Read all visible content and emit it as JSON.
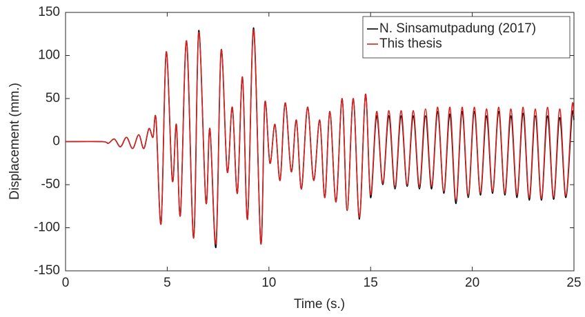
{
  "chart_data": {
    "type": "line",
    "xlabel": "Time (s.)",
    "ylabel": "Displacement (mm.)",
    "x": [
      0,
      1.8,
      2.1,
      2.4,
      2.7,
      3.0,
      3.3,
      3.6,
      3.85,
      4.1,
      4.3,
      4.45,
      4.7,
      4.95,
      5.25,
      5.45,
      5.65,
      5.95,
      6.3,
      6.55,
      6.9,
      7.1,
      7.4,
      7.65,
      7.95,
      8.2,
      8.45,
      8.7,
      8.95,
      9.25,
      9.6,
      9.8,
      10.05,
      10.3,
      10.55,
      10.8,
      11.1,
      11.35,
      11.6,
      11.9,
      12.2,
      12.5,
      12.75,
      13.0,
      13.3,
      13.6,
      13.85,
      14.15,
      14.45,
      14.75,
      15.0,
      15.3,
      15.6,
      15.9,
      16.2,
      16.5,
      16.8,
      17.1,
      17.4,
      17.7,
      18.0,
      18.3,
      18.6,
      18.9,
      19.2,
      19.5,
      19.8,
      20.1,
      20.4,
      20.7,
      21.0,
      21.3,
      21.6,
      21.9,
      22.2,
      22.5,
      22.8,
      23.1,
      23.4,
      23.7,
      24.0,
      24.3,
      24.6,
      24.9,
      25
    ],
    "series": [
      {
        "name": "N. Sinsamutpadung (2017)",
        "color": "#000000",
        "values": [
          0,
          0,
          -2,
          3,
          -6,
          5,
          -8,
          8,
          -8,
          15,
          5,
          26,
          -95,
          104,
          -45,
          20,
          -85,
          117,
          -112,
          129,
          -70,
          15,
          -122,
          106,
          -35,
          40,
          -60,
          75,
          -90,
          132,
          -118,
          45,
          -25,
          20,
          -45,
          45,
          -35,
          25,
          -55,
          40,
          -45,
          25,
          -65,
          35,
          -70,
          50,
          -80,
          50,
          -90,
          55,
          -65,
          30,
          -50,
          30,
          -55,
          30,
          -52,
          30,
          -55,
          30,
          -55,
          35,
          -60,
          32,
          -72,
          35,
          -65,
          35,
          -62,
          30,
          -60,
          35,
          -62,
          30,
          -65,
          33,
          -68,
          30,
          -68,
          30,
          -67,
          28,
          -65,
          30,
          25
        ]
      },
      {
        "name": "This thesis",
        "color": "#d62020",
        "values": [
          0,
          0,
          -2,
          3,
          -6,
          5,
          -8,
          8,
          -8,
          15,
          5,
          26,
          -95,
          104,
          -45,
          20,
          -85,
          117,
          -112,
          127,
          -70,
          15,
          -118,
          106,
          -35,
          40,
          -60,
          75,
          -90,
          130,
          -118,
          45,
          -25,
          20,
          -45,
          45,
          -35,
          25,
          -55,
          40,
          -45,
          25,
          -65,
          35,
          -70,
          50,
          -80,
          50,
          -88,
          55,
          -62,
          35,
          -48,
          36,
          -52,
          36,
          -50,
          36,
          -52,
          38,
          -52,
          40,
          -58,
          40,
          -68,
          40,
          -62,
          40,
          -60,
          38,
          -58,
          40,
          -60,
          38,
          -62,
          40,
          -65,
          38,
          -66,
          40,
          -65,
          38,
          -63,
          40,
          30
        ]
      }
    ],
    "xlim": [
      0,
      25
    ],
    "xticks": [
      0,
      5,
      10,
      15,
      20,
      25
    ],
    "ylim": [
      -150,
      150
    ],
    "yticks": [
      -150,
      -100,
      -50,
      0,
      50,
      100,
      150
    ],
    "legend": "top-right"
  }
}
